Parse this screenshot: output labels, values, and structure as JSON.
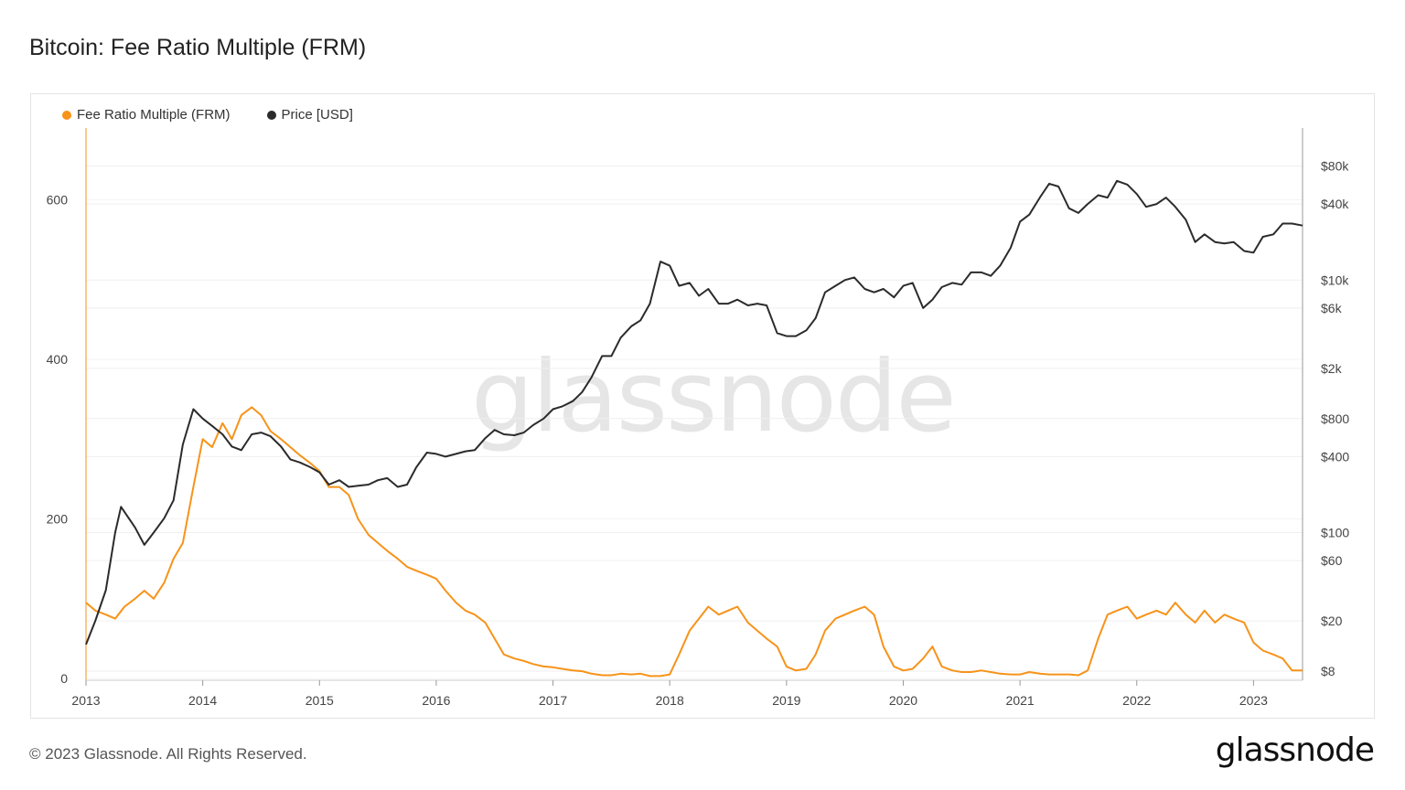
{
  "page": {
    "title": "Bitcoin: Fee Ratio Multiple (FRM)",
    "watermark": "glassnode",
    "footer": "© 2023 Glassnode. All Rights Reserved.",
    "brand": "glassnode"
  },
  "colors": {
    "frm": "#f7931a",
    "price": "#2b2b2b",
    "grid": "#efefef",
    "axis_left": "#f7931a"
  },
  "chart_data": {
    "type": "line",
    "title": "Bitcoin: Fee Ratio Multiple (FRM)",
    "legend": [
      {
        "label": "Fee Ratio Multiple (FRM)",
        "color": "#f7931a"
      },
      {
        "label": "Price [USD]",
        "color": "#2b2b2b"
      }
    ],
    "legend_position": "top-left",
    "x_ticks": [
      "2013",
      "2014",
      "2015",
      "2016",
      "2017",
      "2018",
      "2019",
      "2020",
      "2021",
      "2022",
      "2023"
    ],
    "x_range": [
      2013.0,
      2023.42
    ],
    "y_left": {
      "ticks": [
        "0",
        "200",
        "400",
        "600"
      ],
      "values": [
        0,
        200,
        400,
        600
      ],
      "range": [
        0,
        690
      ]
    },
    "y_right": {
      "scale": "log",
      "ticks": [
        "$8",
        "$20",
        "$60",
        "$100",
        "$400",
        "$800",
        "$2k",
        "$6k",
        "$10k",
        "$40k",
        "$80k"
      ],
      "values": [
        8,
        20,
        60,
        100,
        400,
        800,
        2000,
        6000,
        10000,
        40000,
        80000
      ],
      "range": [
        7,
        160000
      ]
    },
    "series": [
      {
        "name": "Fee Ratio Multiple (FRM)",
        "axis": "left",
        "x": [
          2013.0,
          2013.08,
          2013.17,
          2013.25,
          2013.33,
          2013.42,
          2013.5,
          2013.58,
          2013.67,
          2013.75,
          2013.83,
          2013.92,
          2014.0,
          2014.08,
          2014.17,
          2014.25,
          2014.33,
          2014.42,
          2014.5,
          2014.58,
          2014.67,
          2014.75,
          2014.83,
          2014.92,
          2015.0,
          2015.08,
          2015.17,
          2015.25,
          2015.33,
          2015.42,
          2015.5,
          2015.58,
          2015.67,
          2015.75,
          2015.83,
          2015.92,
          2016.0,
          2016.08,
          2016.17,
          2016.25,
          2016.33,
          2016.42,
          2016.5,
          2016.58,
          2016.67,
          2016.75,
          2016.83,
          2016.92,
          2017.0,
          2017.08,
          2017.17,
          2017.25,
          2017.33,
          2017.42,
          2017.5,
          2017.58,
          2017.67,
          2017.75,
          2017.83,
          2017.92,
          2018.0,
          2018.08,
          2018.17,
          2018.25,
          2018.33,
          2018.42,
          2018.5,
          2018.58,
          2018.67,
          2018.75,
          2018.83,
          2018.92,
          2019.0,
          2019.08,
          2019.17,
          2019.25,
          2019.33,
          2019.42,
          2019.5,
          2019.58,
          2019.67,
          2019.75,
          2019.83,
          2019.92,
          2020.0,
          2020.08,
          2020.17,
          2020.25,
          2020.33,
          2020.42,
          2020.5,
          2020.58,
          2020.67,
          2020.75,
          2020.83,
          2020.92,
          2021.0,
          2021.08,
          2021.17,
          2021.25,
          2021.33,
          2021.42,
          2021.5,
          2021.58,
          2021.67,
          2021.75,
          2021.83,
          2021.92,
          2022.0,
          2022.08,
          2022.17,
          2022.25,
          2022.33,
          2022.42,
          2022.5,
          2022.58,
          2022.67,
          2022.75,
          2022.83,
          2022.92,
          2023.0,
          2023.08,
          2023.17,
          2023.25,
          2023.33,
          2023.42
        ],
        "values": [
          95,
          85,
          80,
          75,
          90,
          100,
          110,
          100,
          120,
          150,
          170,
          240,
          300,
          290,
          320,
          300,
          330,
          340,
          330,
          310,
          300,
          290,
          280,
          270,
          260,
          240,
          240,
          230,
          200,
          180,
          170,
          160,
          150,
          140,
          135,
          130,
          125,
          110,
          95,
          85,
          80,
          70,
          50,
          30,
          25,
          22,
          18,
          15,
          14,
          12,
          10,
          9,
          6,
          4,
          4,
          6,
          5,
          6,
          3,
          3,
          5,
          30,
          60,
          75,
          90,
          80,
          85,
          90,
          70,
          60,
          50,
          40,
          15,
          10,
          12,
          30,
          60,
          75,
          80,
          85,
          90,
          80,
          40,
          15,
          10,
          12,
          25,
          40,
          15,
          10,
          8,
          8,
          10,
          8,
          6,
          5,
          5,
          8,
          6,
          5,
          5,
          5,
          4,
          10,
          50,
          80,
          85,
          90,
          75,
          80,
          85,
          80,
          95,
          80,
          70,
          85,
          70,
          80,
          75,
          70,
          45,
          35,
          30,
          25,
          10,
          10
        ]
      },
      {
        "name": "Price [USD]",
        "axis": "right",
        "x": [
          2013.0,
          2013.08,
          2013.17,
          2013.25,
          2013.3,
          2013.42,
          2013.5,
          2013.58,
          2013.67,
          2013.75,
          2013.83,
          2013.92,
          2014.0,
          2014.08,
          2014.17,
          2014.25,
          2014.33,
          2014.42,
          2014.5,
          2014.58,
          2014.67,
          2014.75,
          2014.83,
          2014.92,
          2015.0,
          2015.08,
          2015.17,
          2015.25,
          2015.33,
          2015.42,
          2015.5,
          2015.58,
          2015.67,
          2015.75,
          2015.83,
          2015.92,
          2016.0,
          2016.08,
          2016.17,
          2016.25,
          2016.33,
          2016.42,
          2016.5,
          2016.58,
          2016.67,
          2016.75,
          2016.83,
          2016.92,
          2017.0,
          2017.08,
          2017.17,
          2017.25,
          2017.33,
          2017.42,
          2017.5,
          2017.58,
          2017.67,
          2017.75,
          2017.83,
          2017.92,
          2018.0,
          2018.08,
          2018.17,
          2018.25,
          2018.33,
          2018.42,
          2018.5,
          2018.58,
          2018.67,
          2018.75,
          2018.83,
          2018.92,
          2019.0,
          2019.08,
          2019.17,
          2019.25,
          2019.33,
          2019.42,
          2019.5,
          2019.58,
          2019.67,
          2019.75,
          2019.83,
          2019.92,
          2020.0,
          2020.08,
          2020.17,
          2020.25,
          2020.33,
          2020.42,
          2020.5,
          2020.58,
          2020.67,
          2020.75,
          2020.83,
          2020.92,
          2021.0,
          2021.08,
          2021.17,
          2021.25,
          2021.33,
          2021.42,
          2021.5,
          2021.58,
          2021.67,
          2021.75,
          2021.83,
          2021.92,
          2022.0,
          2022.08,
          2022.17,
          2022.25,
          2022.33,
          2022.42,
          2022.5,
          2022.58,
          2022.67,
          2022.75,
          2022.83,
          2022.92,
          2023.0,
          2023.08,
          2023.17,
          2023.25,
          2023.33,
          2023.42
        ],
        "values": [
          13,
          20,
          35,
          100,
          160,
          110,
          80,
          100,
          130,
          180,
          500,
          950,
          800,
          700,
          600,
          480,
          450,
          600,
          620,
          580,
          480,
          380,
          360,
          330,
          300,
          240,
          260,
          230,
          235,
          240,
          260,
          270,
          230,
          240,
          330,
          430,
          420,
          400,
          420,
          440,
          450,
          560,
          650,
          600,
          590,
          620,
          710,
          800,
          950,
          1000,
          1100,
          1300,
          1700,
          2500,
          2500,
          3500,
          4300,
          4800,
          6500,
          14000,
          13000,
          9000,
          9500,
          7500,
          8500,
          6500,
          6500,
          7000,
          6300,
          6500,
          6300,
          3800,
          3600,
          3600,
          4000,
          5000,
          8000,
          9000,
          10000,
          10500,
          8500,
          8000,
          8500,
          7300,
          9000,
          9500,
          6000,
          7000,
          8800,
          9500,
          9200,
          11500,
          11500,
          10800,
          13000,
          18000,
          29000,
          33000,
          45000,
          58000,
          55000,
          37000,
          34000,
          40000,
          47000,
          45000,
          61000,
          57000,
          48000,
          38000,
          40000,
          45000,
          38000,
          30000,
          20000,
          23000,
          20000,
          19500,
          20000,
          17000,
          16500,
          22000,
          23000,
          28000,
          28000,
          27000
        ]
      }
    ]
  }
}
